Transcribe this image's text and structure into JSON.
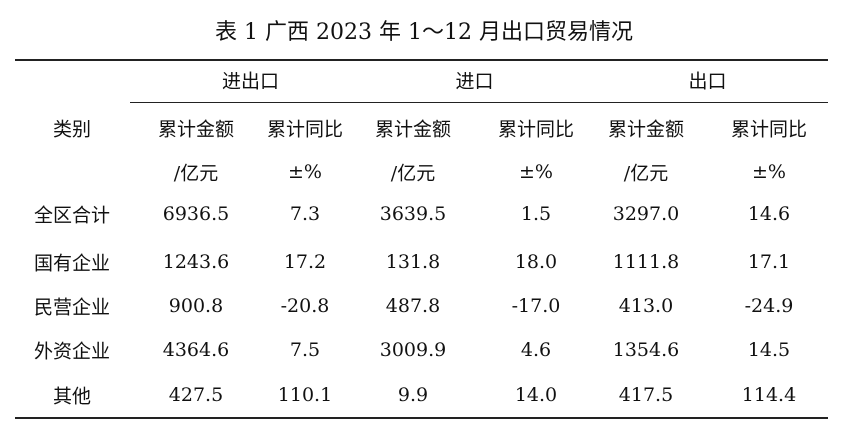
{
  "title": "表 1 广西 2023 年 1～12 月出口贸易情况",
  "table": {
    "corner": "类别",
    "groups": [
      "进出口",
      "进口",
      "出口"
    ],
    "columns": [
      {
        "label": "累计金额",
        "unit": "/亿元"
      },
      {
        "label": "累计同比",
        "unit": "±%"
      },
      {
        "label": "累计金额",
        "unit": "/亿元"
      },
      {
        "label": "累计同比",
        "unit": "±%"
      },
      {
        "label": "累计金额",
        "unit": "/亿元"
      },
      {
        "label": "累计同比",
        "unit": "±%"
      }
    ],
    "rows": [
      {
        "label": "全区合计",
        "cells": [
          "6936.5",
          "7.3",
          "3639.5",
          "1.5",
          "3297.0",
          "14.6"
        ]
      },
      {
        "label": "国有企业",
        "cells": [
          "1243.6",
          "17.2",
          "131.8",
          "18.0",
          "1111.8",
          "17.1"
        ]
      },
      {
        "label": "民营企业",
        "cells": [
          "900.8",
          "-20.8",
          "487.8",
          "-17.0",
          "413.0",
          "-24.9"
        ]
      },
      {
        "label": "外资企业",
        "cells": [
          "4364.6",
          "7.5",
          "3009.9",
          "4.6",
          "1354.6",
          "14.5"
        ]
      },
      {
        "label": "其他",
        "cells": [
          "427.5",
          "110.1",
          "9.9",
          "14.0",
          "417.5",
          "114.4"
        ]
      }
    ]
  }
}
